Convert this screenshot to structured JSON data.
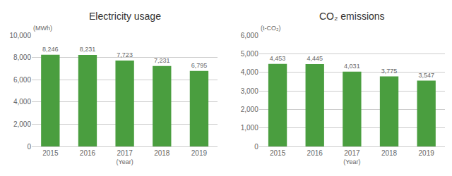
{
  "chart_data": [
    {
      "type": "bar",
      "title": "Electricity usage",
      "xlabel": "(Year)",
      "ylabel": "(MWh)",
      "categories": [
        "2015",
        "2016",
        "2017",
        "2018",
        "2019"
      ],
      "values": [
        8246,
        8231,
        7723,
        7231,
        6795
      ],
      "value_labels": [
        "8,246",
        "8,231",
        "7,723",
        "7,231",
        "6,795"
      ],
      "data_labels": true,
      "color": "#4a9e3f",
      "ylim": [
        0,
        10000
      ],
      "yticks": [
        0,
        {
          "value": 2000,
          "label": "2,000"
        },
        {
          "value": 4000,
          "label": "4,000"
        },
        {
          "value": 6000,
          "label": "6,000"
        },
        {
          "value": 8000,
          "label": "8,000"
        },
        {
          "value": 10000,
          "label": "10,000"
        }
      ],
      "grid": true
    },
    {
      "type": "bar",
      "title": "CO₂ emissions",
      "xlabel": "(Year)",
      "ylabel": "(t-CO₂)",
      "categories": [
        "2015",
        "2016",
        "2017",
        "2018",
        "2019"
      ],
      "values": [
        4453,
        4445,
        4031,
        3775,
        3547
      ],
      "value_labels": [
        "4,453",
        "4,445",
        "4,031",
        "3,775",
        "3,547"
      ],
      "data_labels": true,
      "color": "#4a9e3f",
      "ylim": [
        0,
        6000
      ],
      "yticks": [
        0,
        {
          "value": 1000,
          "label": "1,000"
        },
        {
          "value": 2000,
          "label": "2,000"
        },
        {
          "value": 3000,
          "label": "3,000"
        },
        {
          "value": 4000,
          "label": "4,000"
        },
        {
          "value": 5000,
          "label": "5,000"
        },
        {
          "value": 6000,
          "label": "6,000"
        }
      ],
      "grid": true
    }
  ]
}
